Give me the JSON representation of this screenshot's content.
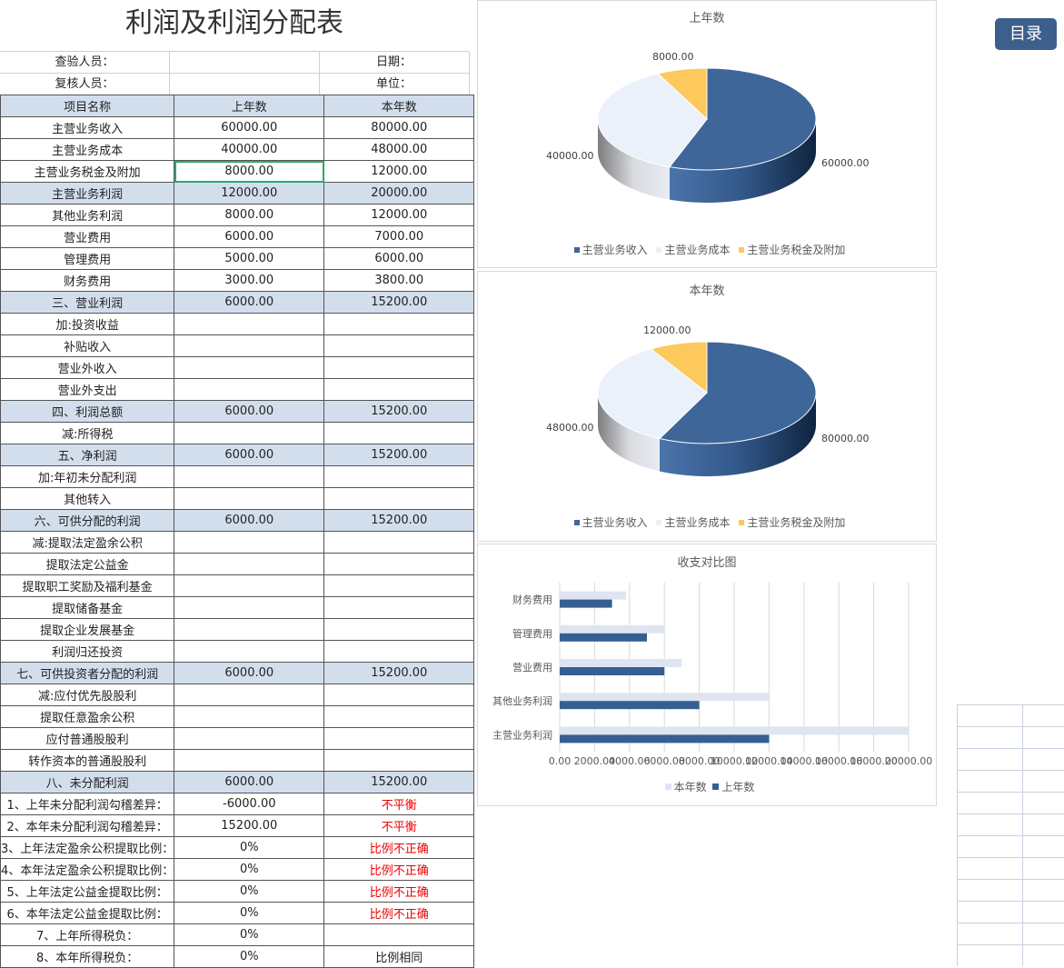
{
  "title": "利润及利润分配表",
  "toc_button": "目录",
  "meta": {
    "checker": "查验人员：",
    "date": "日期：",
    "reviewer": "复核人员：",
    "unit": "单位："
  },
  "table": {
    "headers": [
      "项目名称",
      "上年数",
      "本年数"
    ],
    "rows": [
      {
        "name": "主营业务收入",
        "prev": "60000.00",
        "cur": "80000.00"
      },
      {
        "name": "主营业务成本",
        "prev": "40000.00",
        "cur": "48000.00"
      },
      {
        "name": "主营业务税金及附加",
        "prev": "8000.00",
        "cur": "12000.00",
        "selected": true
      },
      {
        "name": "主营业务利润",
        "prev": "12000.00",
        "cur": "20000.00",
        "hl": true
      },
      {
        "name": "其他业务利润",
        "prev": "8000.00",
        "cur": "12000.00"
      },
      {
        "name": "营业费用",
        "prev": "6000.00",
        "cur": "7000.00"
      },
      {
        "name": "管理费用",
        "prev": "5000.00",
        "cur": "6000.00"
      },
      {
        "name": "财务费用",
        "prev": "3000.00",
        "cur": "3800.00"
      },
      {
        "name": "三、营业利润",
        "prev": "6000.00",
        "cur": "15200.00",
        "hl": true
      },
      {
        "name": "加:投资收益",
        "prev": "",
        "cur": ""
      },
      {
        "name": "补贴收入",
        "prev": "",
        "cur": ""
      },
      {
        "name": "营业外收入",
        "prev": "",
        "cur": ""
      },
      {
        "name": "营业外支出",
        "prev": "",
        "cur": ""
      },
      {
        "name": "四、利润总额",
        "prev": "6000.00",
        "cur": "15200.00",
        "hl": true
      },
      {
        "name": "减:所得税",
        "prev": "",
        "cur": ""
      },
      {
        "name": "五、净利润",
        "prev": "6000.00",
        "cur": "15200.00",
        "hl": true
      },
      {
        "name": "加:年初未分配利润",
        "prev": "",
        "cur": ""
      },
      {
        "name": "其他转入",
        "prev": "",
        "cur": ""
      },
      {
        "name": "六、可供分配的利润",
        "prev": "6000.00",
        "cur": "15200.00",
        "hl": true
      },
      {
        "name": "减:提取法定盈余公积",
        "prev": "",
        "cur": ""
      },
      {
        "name": "提取法定公益金",
        "prev": "",
        "cur": ""
      },
      {
        "name": "提取职工奖励及福利基金",
        "prev": "",
        "cur": ""
      },
      {
        "name": "提取储备基金",
        "prev": "",
        "cur": ""
      },
      {
        "name": "提取企业发展基金",
        "prev": "",
        "cur": ""
      },
      {
        "name": "利润归还投资",
        "prev": "",
        "cur": ""
      },
      {
        "name": "七、可供投资者分配的利润",
        "prev": "6000.00",
        "cur": "15200.00",
        "hl": true
      },
      {
        "name": "减:应付优先股股利",
        "prev": "",
        "cur": ""
      },
      {
        "name": "提取任意盈余公积",
        "prev": "",
        "cur": ""
      },
      {
        "name": "应付普通股股利",
        "prev": "",
        "cur": ""
      },
      {
        "name": "转作资本的普通股股利",
        "prev": "",
        "cur": ""
      },
      {
        "name": "八、未分配利润",
        "prev": "6000.00",
        "cur": "15200.00",
        "hl": true
      },
      {
        "name": "1、上年未分配利润勾稽差异：",
        "prev": "-6000.00",
        "cur": "不平衡",
        "red": true
      },
      {
        "name": "2、本年未分配利润勾稽差异：",
        "prev": "15200.00",
        "cur": "不平衡",
        "red": true
      },
      {
        "name": "3、上年法定盈余公积提取比例：",
        "prev": "0%",
        "cur": "比例不正确",
        "red": true
      },
      {
        "name": "4、本年法定盈余公积提取比例：",
        "prev": "0%",
        "cur": "比例不正确",
        "red": true
      },
      {
        "name": "5、上年法定公益金提取比例：",
        "prev": "0%",
        "cur": "比例不正确",
        "red": true
      },
      {
        "name": "6、本年法定公益金提取比例：",
        "prev": "0%",
        "cur": "比例不正确",
        "red": true
      },
      {
        "name": "7、上年所得税负：",
        "prev": "0%",
        "cur": ""
      },
      {
        "name": "8、本年所得税负：",
        "prev": "0%",
        "cur": "比例相同"
      }
    ]
  },
  "chart_data": [
    {
      "type": "pie",
      "title": "上年数",
      "categories": [
        "主营业务收入",
        "主营业务成本",
        "主营业务税金及附加"
      ],
      "values": [
        60000,
        40000,
        8000
      ],
      "labels": [
        "60000.00",
        "40000.00",
        "8000.00"
      ],
      "colors": [
        "#3e6699",
        "#eaf1fb",
        "#fdc95d"
      ],
      "legend": "bottom",
      "style": "3d"
    },
    {
      "type": "pie",
      "title": "本年数",
      "categories": [
        "主营业务收入",
        "主营业务成本",
        "主营业务税金及附加"
      ],
      "values": [
        80000,
        48000,
        12000
      ],
      "labels": [
        "80000.00",
        "48000.00",
        "12000.00"
      ],
      "colors": [
        "#3e6699",
        "#eaf1fb",
        "#fdc95d"
      ],
      "legend": "bottom",
      "style": "3d"
    },
    {
      "type": "bar",
      "orientation": "horizontal",
      "title": "收支对比图",
      "categories": [
        "财务费用",
        "管理费用",
        "营业费用",
        "其他业务利润",
        "主营业务利润"
      ],
      "series": [
        {
          "name": "本年数",
          "values": [
            3800,
            6000,
            7000,
            12000,
            20000
          ],
          "color": "#dfe5f0"
        },
        {
          "name": "上年数",
          "values": [
            3000,
            5000,
            6000,
            8000,
            12000
          ],
          "color": "#365f91"
        }
      ],
      "xlim": [
        0,
        20000
      ],
      "xticks": [
        "0.00",
        "2000.00",
        "4000.00",
        "6000.00",
        "8000.00",
        "10000.00",
        "12000.00",
        "14000.00",
        "16000.00",
        "18000.00",
        "20000.00"
      ],
      "grid": true,
      "legend": "bottom"
    }
  ]
}
